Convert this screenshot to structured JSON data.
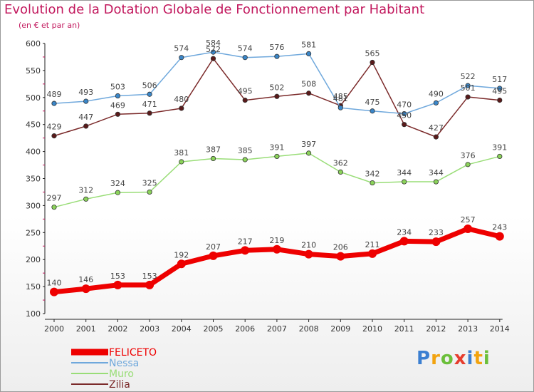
{
  "chart_data": {
    "type": "line",
    "title": "Evolution de la Dotation Globale de Fonctionnement par Habitant",
    "subtitle": "(en € et par an)",
    "x": [
      "2000",
      "2001",
      "2002",
      "2003",
      "2004",
      "2005",
      "2006",
      "2007",
      "2008",
      "2009",
      "2010",
      "2011",
      "2012",
      "2013",
      "2014"
    ],
    "ylim": [
      100,
      600
    ],
    "yticks": [
      "100",
      "150",
      "200",
      "250",
      "300",
      "350",
      "400",
      "450",
      "500",
      "550",
      "600"
    ],
    "grid": false,
    "legend_position": "bottom-left",
    "series": [
      {
        "name": "FELICETO",
        "color": "#ee0000",
        "values": [
          140,
          146,
          153,
          153,
          192,
          207,
          217,
          219,
          210,
          206,
          211,
          234,
          233,
          257,
          243
        ]
      },
      {
        "name": "Nessa",
        "color": "#6fa8dc",
        "values": [
          489,
          493,
          503,
          506,
          574,
          584,
          574,
          576,
          581,
          481,
          475,
          470,
          490,
          522,
          517
        ]
      },
      {
        "name": "Muro",
        "color": "#99dd77",
        "values": [
          297,
          312,
          324,
          325,
          381,
          387,
          385,
          391,
          397,
          362,
          342,
          344,
          344,
          376,
          391
        ]
      },
      {
        "name": "Zilia",
        "color": "#7b2a2a",
        "values": [
          429,
          447,
          469,
          471,
          480,
          572,
          495,
          502,
          508,
          485,
          565,
          450,
          427,
          501,
          495
        ]
      }
    ]
  },
  "logo": {
    "text": "Proxiti"
  }
}
